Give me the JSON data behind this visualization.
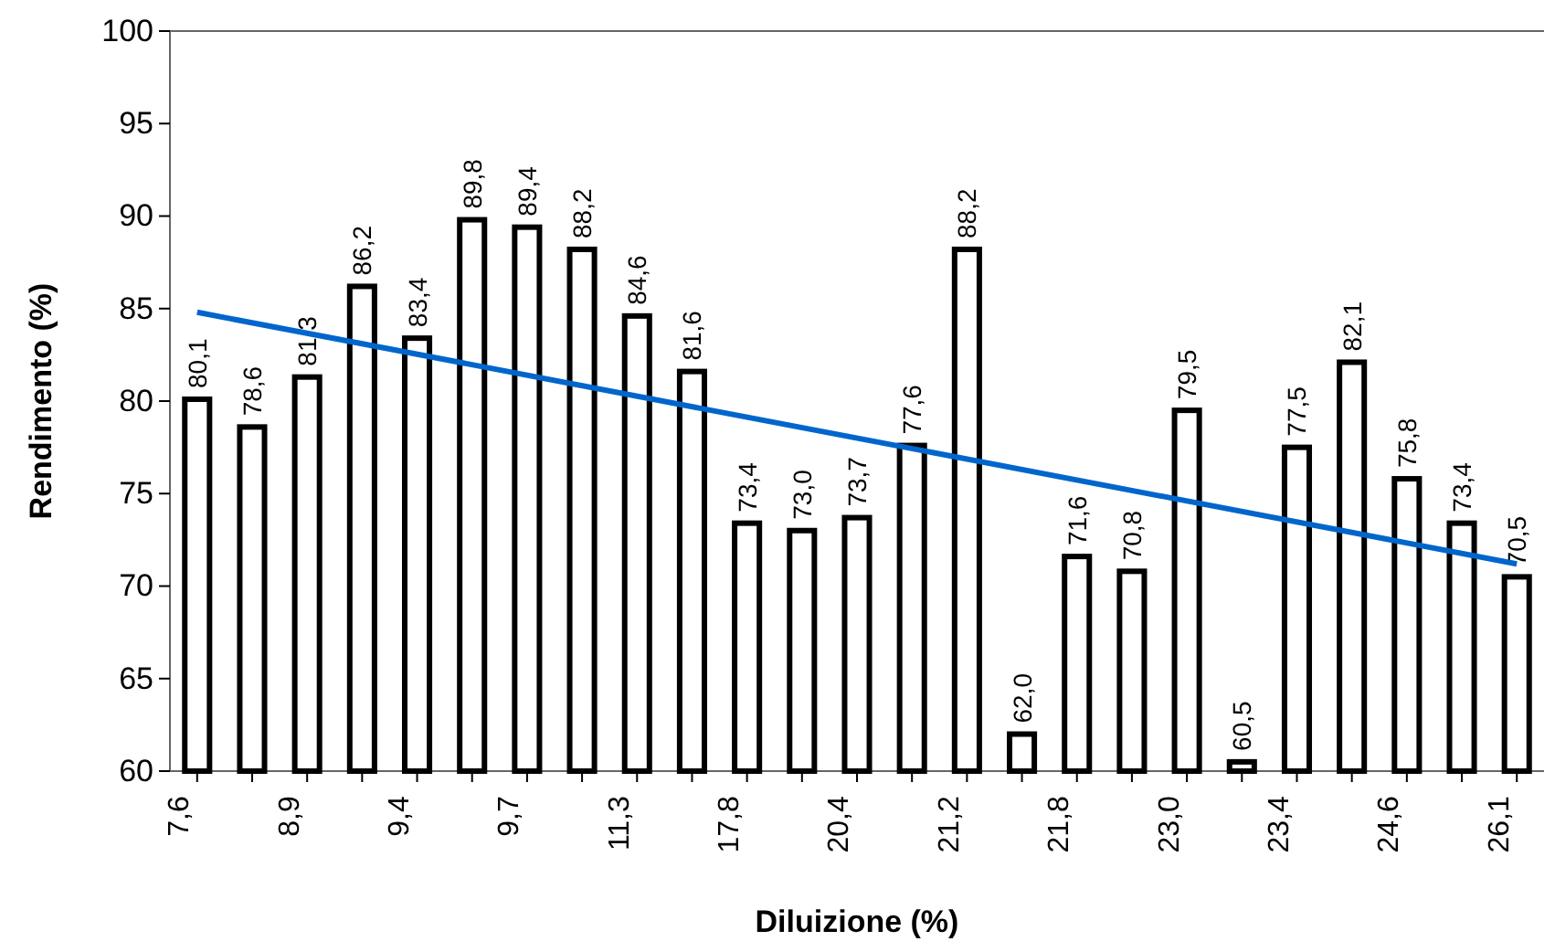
{
  "chart_data": {
    "type": "bar",
    "xlabel": "Diluizione (%)",
    "ylabel": "Rendimento (%)",
    "categories": [
      "7,6",
      null,
      "8,9",
      null,
      "9,4",
      null,
      "9,7",
      null,
      "11,3",
      null,
      "17,8",
      null,
      "20,4",
      null,
      "21,2",
      null,
      "21,8",
      null,
      "23,0",
      null,
      "23,4",
      null,
      "24,6",
      null,
      "26,1"
    ],
    "ylim": [
      60,
      100
    ],
    "yticks": [
      60,
      65,
      70,
      75,
      80,
      85,
      90,
      95,
      100
    ],
    "grid": false,
    "series": [
      {
        "color": "#000000",
        "values": [
          80.1,
          78.6,
          81.3,
          86.2,
          83.4,
          89.8,
          89.4,
          88.2,
          84.6,
          81.6,
          73.4,
          73.0,
          73.7,
          77.6,
          88.2,
          62.0,
          71.6,
          70.8,
          79.5,
          60.5,
          77.5,
          82.1,
          75.8,
          73.4,
          70.5
        ],
        "value_labels": [
          "80,1",
          "78,6",
          "81,3",
          "86,2",
          "83,4",
          "89,8",
          "89,4",
          "88,2",
          "84,6",
          "81,6",
          "73,4",
          "73,0",
          "73,7",
          "77,6",
          "88,2",
          "62,0",
          "71,6",
          "70,8",
          "79,5",
          "60,5",
          "77,5",
          "82,1",
          "75,8",
          "73,4",
          "70,5"
        ]
      },
      {
        "type": "line",
        "color": "#0066cc",
        "x": [
          "7,6",
          "26,1"
        ],
        "values": [
          84.8,
          71.2
        ]
      }
    ]
  }
}
